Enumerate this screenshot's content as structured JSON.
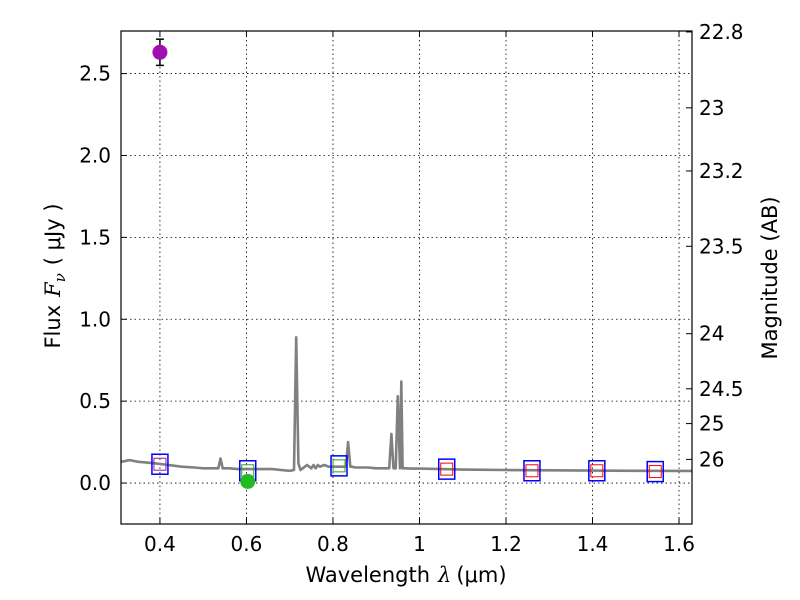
{
  "chart_data": {
    "type": "scatter",
    "xlabel": "Wavelength",
    "xlabel_symbol": "λ",
    "xlabel_unit": "(μm)",
    "ylabel": "Flux",
    "ylabel_symbol": "F",
    "ylabel_subscript": "ν",
    "ylabel_unit": "( μJy )",
    "y2label": "Magnitude (AB)",
    "xlim": [
      0.31,
      1.63
    ],
    "ylim": [
      -0.25,
      2.76
    ],
    "grid": true,
    "x_ticks": [
      0.4,
      0.6,
      0.8,
      1.0,
      1.2,
      1.4,
      1.6
    ],
    "x_tick_labels": [
      "0.4",
      "0.6",
      "0.8",
      "1",
      "1.2",
      "1.4",
      "1.6"
    ],
    "y_ticks": [
      0.0,
      0.5,
      1.0,
      1.5,
      2.0,
      2.5
    ],
    "y_tick_labels": [
      "0.0",
      "0.5",
      "1.0",
      "1.5",
      "2.0",
      "2.5"
    ],
    "mag_ticks": [
      {
        "mag": 22.8,
        "label": "22.8"
      },
      {
        "mag": 23.0,
        "label": "23"
      },
      {
        "mag": 23.2,
        "label": "23.2"
      },
      {
        "mag": 23.5,
        "label": "23.5"
      },
      {
        "mag": 24.0,
        "label": "24"
      },
      {
        "mag": 24.5,
        "label": "24.5"
      },
      {
        "mag": 25.0,
        "label": "25"
      },
      {
        "mag": 26.0,
        "label": "26"
      }
    ],
    "series": [
      {
        "name": "model spectrum",
        "kind": "line",
        "color": "#808080",
        "x": [
          0.31,
          0.33,
          0.35,
          0.37,
          0.39,
          0.42,
          0.45,
          0.48,
          0.5,
          0.52,
          0.535,
          0.54,
          0.545,
          0.56,
          0.58,
          0.6,
          0.62,
          0.64,
          0.66,
          0.68,
          0.7,
          0.71,
          0.715,
          0.72,
          0.725,
          0.73,
          0.74,
          0.75,
          0.755,
          0.76,
          0.765,
          0.77,
          0.78,
          0.79,
          0.8,
          0.82,
          0.83,
          0.835,
          0.84,
          0.845,
          0.85,
          0.88,
          0.9,
          0.93,
          0.935,
          0.94,
          0.945,
          0.95,
          0.955,
          0.958,
          0.961,
          0.964,
          0.967,
          0.97,
          0.98,
          1.0,
          1.05,
          1.1,
          1.2,
          1.3,
          1.4,
          1.5,
          1.6,
          1.63
        ],
        "y": [
          0.13,
          0.14,
          0.13,
          0.125,
          0.12,
          0.11,
          0.1,
          0.095,
          0.09,
          0.09,
          0.09,
          0.15,
          0.09,
          0.09,
          0.085,
          0.085,
          0.085,
          0.085,
          0.085,
          0.08,
          0.075,
          0.08,
          0.89,
          0.12,
          0.08,
          0.09,
          0.11,
          0.09,
          0.11,
          0.09,
          0.11,
          0.1,
          0.11,
          0.1,
          0.1,
          0.1,
          0.1,
          0.25,
          0.1,
          0.1,
          0.095,
          0.095,
          0.09,
          0.09,
          0.3,
          0.09,
          0.09,
          0.53,
          0.09,
          0.62,
          0.09,
          0.09,
          0.09,
          0.09,
          0.088,
          0.088,
          0.085,
          0.082,
          0.08,
          0.078,
          0.076,
          0.075,
          0.074,
          0.074
        ]
      },
      {
        "name": "model bandpass flux",
        "kind": "marker",
        "marker": "square",
        "color": "#0000ff",
        "x": [
          0.4,
          0.603,
          0.814,
          1.063,
          1.26,
          1.41,
          1.545
        ],
        "y": [
          0.115,
          0.075,
          0.105,
          0.085,
          0.075,
          0.075,
          0.07
        ]
      },
      {
        "name": "inner squares (HST)",
        "kind": "marker",
        "marker": "square-small",
        "colors": [
          "#9b1c9b",
          "#2ca02c",
          "#2ca02c",
          "#ff0000",
          "#ff0000",
          "#ff0000",
          "#ff0000"
        ],
        "x": [
          0.4,
          0.603,
          0.814,
          1.063,
          1.26,
          1.41,
          1.545
        ],
        "y": [
          0.115,
          0.075,
          0.105,
          0.085,
          0.075,
          0.075,
          0.07
        ]
      },
      {
        "name": "observed photometry",
        "kind": "errorbar",
        "marker": "circle",
        "colors": [
          "#a010b0",
          "#22bb22"
        ],
        "x": [
          0.4,
          0.603
        ],
        "y": [
          2.63,
          0.01
        ],
        "yerr": [
          0.08,
          0.025
        ]
      }
    ]
  }
}
